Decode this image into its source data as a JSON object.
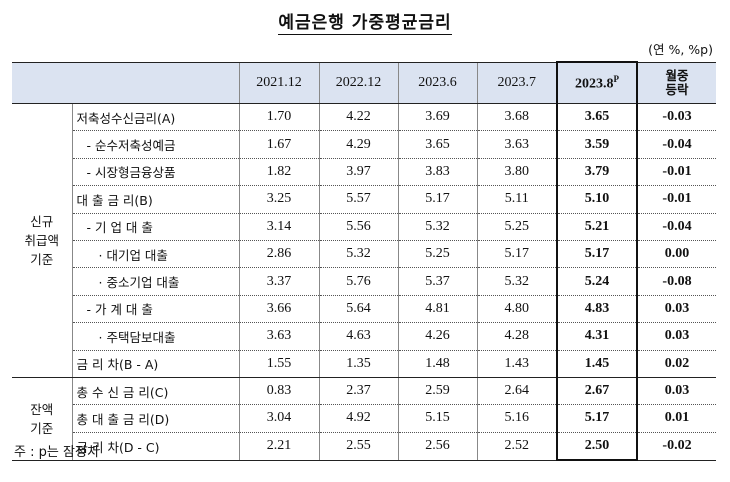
{
  "title": "예금은행 가중평균금리",
  "unit": "(연 %, %p)",
  "columns": [
    "2021.12",
    "2022.12",
    "2023.6",
    "2023.7",
    "2023.8",
    "월중\n등락"
  ],
  "highlight_sup": "P",
  "groups": {
    "new": "신규\n취급액\n기준",
    "balance": "잔액\n기준"
  },
  "rows": [
    {
      "label": "저축성수신금리(A)",
      "values": [
        "1.70",
        "4.22",
        "3.69",
        "3.68",
        "3.65",
        "-0.03"
      ]
    },
    {
      "label": "- 순수저축성예금",
      "values": [
        "1.67",
        "4.29",
        "3.65",
        "3.63",
        "3.59",
        "-0.04"
      ]
    },
    {
      "label": "- 시장형금융상품",
      "values": [
        "1.82",
        "3.97",
        "3.83",
        "3.80",
        "3.79",
        "-0.01"
      ]
    },
    {
      "label": "대 출 금 리(B)",
      "values": [
        "3.25",
        "5.57",
        "5.17",
        "5.11",
        "5.10",
        "-0.01"
      ]
    },
    {
      "label": "- 기 업 대 출",
      "values": [
        "3.14",
        "5.56",
        "5.32",
        "5.25",
        "5.21",
        "-0.04"
      ]
    },
    {
      "label": "· 대기업 대출",
      "values": [
        "2.86",
        "5.32",
        "5.25",
        "5.17",
        "5.17",
        "0.00"
      ]
    },
    {
      "label": "· 중소기업 대출",
      "values": [
        "3.37",
        "5.76",
        "5.37",
        "5.32",
        "5.24",
        "-0.08"
      ]
    },
    {
      "label": "- 가 계 대 출",
      "values": [
        "3.66",
        "5.64",
        "4.81",
        "4.80",
        "4.83",
        "0.03"
      ]
    },
    {
      "label": "· 주택담보대출",
      "values": [
        "3.63",
        "4.63",
        "4.26",
        "4.28",
        "4.31",
        "0.03"
      ]
    },
    {
      "label": "금 리 차(B - A)",
      "values": [
        "1.55",
        "1.35",
        "1.48",
        "1.43",
        "1.45",
        "0.02"
      ]
    },
    {
      "label": "총 수 신 금 리(C)",
      "values": [
        "0.83",
        "2.37",
        "2.59",
        "2.64",
        "2.67",
        "0.03"
      ]
    },
    {
      "label": "총 대 출 금 리(D)",
      "values": [
        "3.04",
        "4.92",
        "5.15",
        "5.16",
        "5.17",
        "0.01"
      ]
    },
    {
      "label": "금 리 차(D - C)",
      "values": [
        "2.21",
        "2.55",
        "2.56",
        "2.52",
        "2.50",
        "-0.02"
      ]
    }
  ],
  "note": "주 : p는 잠정치"
}
